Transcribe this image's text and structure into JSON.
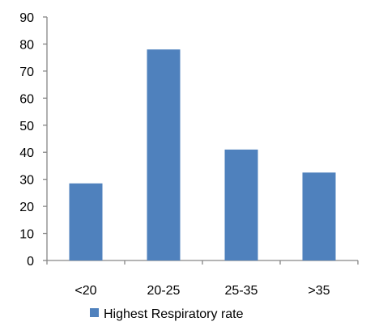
{
  "chart_data": {
    "type": "bar",
    "categories": [
      "<20",
      "20-25",
      "25-35",
      ">35"
    ],
    "series": [
      {
        "name": "Highest Respiratory rate",
        "values": [
          28.5,
          78,
          41,
          32.5
        ],
        "color": "#4F81BD"
      }
    ],
    "ylim": [
      0,
      90
    ],
    "y_ticks": [
      0,
      10,
      20,
      30,
      40,
      50,
      60,
      70,
      80,
      90
    ],
    "grid": false,
    "legend": "bottom"
  }
}
